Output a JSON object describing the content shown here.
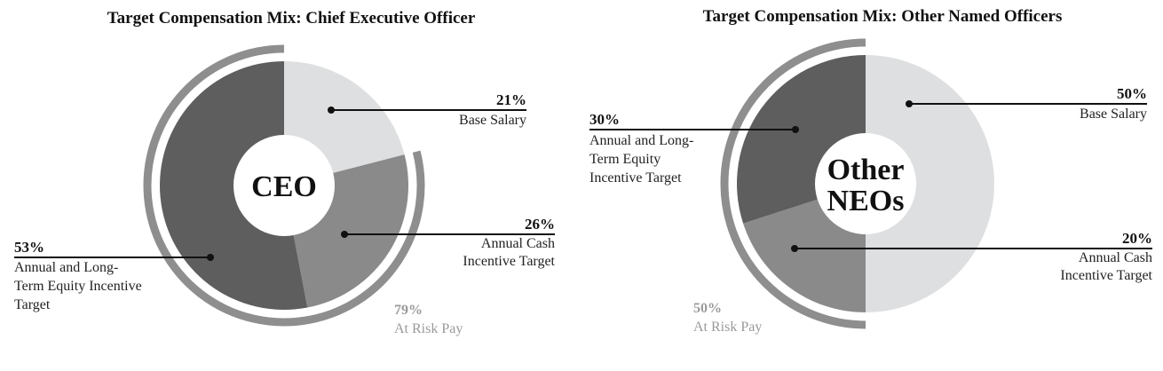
{
  "chart_data": [
    {
      "type": "pie",
      "variant": "donut",
      "title": "Target Compensation Mix: Chief Executive Officer",
      "center_label": [
        "CEO"
      ],
      "slices": [
        {
          "label": [
            "Base Salary"
          ],
          "value": 21,
          "pct_label": "21%",
          "color": "#dedfe0"
        },
        {
          "label": [
            "Annual Cash",
            "Incentive Target"
          ],
          "value": 26,
          "pct_label": "26%",
          "color": "#8a8a8a"
        },
        {
          "label": [
            "Annual and Long-",
            "Term Equity Incentive",
            "Target"
          ],
          "value": 53,
          "pct_label": "53%",
          "color": "#5e5e5e"
        }
      ],
      "at_risk": {
        "value": 79,
        "pct_label": "79%",
        "label": "At Risk Pay",
        "color": "#8e8e8e"
      }
    },
    {
      "type": "pie",
      "variant": "donut",
      "title": "Target Compensation Mix: Other Named Officers",
      "center_label": [
        "Other",
        "NEOs"
      ],
      "slices": [
        {
          "label": [
            "Base Salary"
          ],
          "value": 50,
          "pct_label": "50%",
          "color": "#dedfe0"
        },
        {
          "label": [
            "Annual Cash",
            "Incentive Target"
          ],
          "value": 20,
          "pct_label": "20%",
          "color": "#8a8a8a"
        },
        {
          "label": [
            "Annual and Long-",
            "Term Equity",
            "Incentive Target"
          ],
          "value": 30,
          "pct_label": "30%",
          "color": "#5e5e5e"
        }
      ],
      "at_risk": {
        "value": 50,
        "pct_label": "50%",
        "label": "At Risk Pay",
        "color": "#8e8e8e"
      }
    }
  ]
}
